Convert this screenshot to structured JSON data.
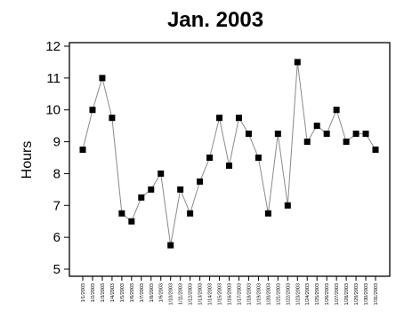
{
  "chart_data": {
    "type": "line",
    "title": "Jan. 2003",
    "xlabel": "",
    "ylabel": "Hours",
    "ylim": [
      5,
      12
    ],
    "yticks": [
      5,
      6,
      7,
      8,
      9,
      10,
      11,
      12
    ],
    "grid": false,
    "categories": [
      "1/1/2003",
      "1/2/2003",
      "1/3/2003",
      "1/4/2003",
      "1/5/2003",
      "1/6/2003",
      "1/7/2003",
      "1/8/2003",
      "1/9/2003",
      "1/10/2003",
      "1/11/2003",
      "1/12/2003",
      "1/13/2003",
      "1/14/2003",
      "1/15/2003",
      "1/16/2003",
      "1/17/2003",
      "1/18/2003",
      "1/19/2003",
      "1/20/2003",
      "1/21/2003",
      "1/22/2003",
      "1/23/2003",
      "1/24/2003",
      "1/25/2003",
      "1/26/2003",
      "1/27/2003",
      "1/28/2003",
      "1/29/2003",
      "1/30/2003",
      "1/31/2003"
    ],
    "values": [
      8.75,
      10,
      11,
      9.75,
      6.75,
      6.5,
      7.25,
      7.5,
      8,
      5.75,
      7.5,
      6.75,
      7.75,
      8.5,
      9.75,
      8.25,
      9.75,
      9.25,
      8.5,
      6.75,
      9.25,
      7,
      11.5,
      9,
      9.5,
      9.25,
      10,
      9,
      9.25,
      9.25,
      8.75
    ]
  }
}
